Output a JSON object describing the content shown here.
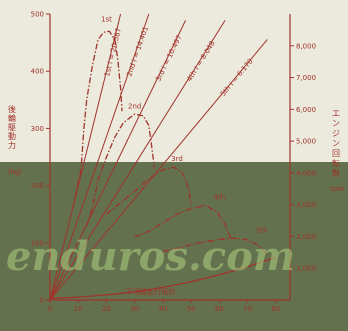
{
  "chart_data": {
    "type": "line",
    "y_left": {
      "label_chars": [
        "後",
        "輪",
        "駆",
        "動",
        "力"
      ],
      "unit": "(kg)",
      "ticks": [
        "500",
        "400",
        "300",
        "200",
        "100",
        "0"
      ],
      "range": [
        0,
        500
      ]
    },
    "y_right": {
      "label_chars": [
        "エ",
        "ン",
        "ジ",
        "ン",
        "回",
        "転",
        "数"
      ],
      "unit": "rpm",
      "ticks": [
        "8,000",
        "7,000",
        "6,000",
        "5,000",
        "4,000",
        "3,000",
        "2,000",
        "1,000"
      ],
      "range": [
        0,
        9000
      ]
    },
    "x": {
      "ticks": [
        "0",
        "10",
        "20",
        "30",
        "40",
        "50",
        "60",
        "70",
        "80"
      ],
      "range": [
        0,
        85
      ]
    },
    "rpm_lines": [
      {
        "label": "1st i = 20.387",
        "top_rpm": 9000,
        "top_speed": 25
      },
      {
        "label": "2nd i = 14.401",
        "top_rpm": 9000,
        "top_speed": 35
      },
      {
        "label": "3rd i = 10.497",
        "top_rpm": 8800,
        "top_speed": 48
      },
      {
        "label": "4th i = 8.048",
        "top_rpm": 8800,
        "top_speed": 62
      },
      {
        "label": "5th i = 6.170",
        "top_rpm": 8200,
        "top_speed": 77
      }
    ],
    "force_curves": [
      {
        "gear": "1st",
        "points": [
          [
            8,
            160
          ],
          [
            11,
            230
          ],
          [
            12,
            300
          ],
          [
            13,
            350
          ],
          [
            15,
            410
          ],
          [
            17,
            455
          ],
          [
            19,
            468
          ],
          [
            21,
            470
          ],
          [
            23,
            455
          ],
          [
            24,
            420
          ],
          [
            25,
            370
          ],
          [
            25.5,
            330
          ]
        ]
      },
      {
        "gear": "2nd",
        "points": [
          [
            13,
            130
          ],
          [
            15,
            160
          ],
          [
            17,
            210
          ],
          [
            20,
            250
          ],
          [
            23,
            285
          ],
          [
            26,
            310
          ],
          [
            30,
            325
          ],
          [
            33,
            322
          ],
          [
            35,
            305
          ],
          [
            36,
            270
          ],
          [
            37,
            230
          ]
        ]
      },
      {
        "gear": "3rd",
        "points": [
          [
            20,
            150
          ],
          [
            25,
            170
          ],
          [
            30,
            190
          ],
          [
            35,
            212
          ],
          [
            40,
            228
          ],
          [
            44,
            232
          ],
          [
            47,
            222
          ],
          [
            49,
            195
          ],
          [
            50,
            165
          ]
        ]
      },
      {
        "gear": "4th",
        "points": [
          [
            30,
            110
          ],
          [
            35,
            120
          ],
          [
            40,
            135
          ],
          [
            45,
            150
          ],
          [
            50,
            160
          ],
          [
            55,
            165
          ],
          [
            59,
            155
          ],
          [
            62,
            132
          ],
          [
            64,
            108
          ]
        ]
      },
      {
        "gear": "5th",
        "points": [
          [
            40,
            85
          ],
          [
            45,
            90
          ],
          [
            50,
            97
          ],
          [
            55,
            102
          ],
          [
            60,
            106
          ],
          [
            65,
            108
          ],
          [
            70,
            105
          ],
          [
            74,
            95
          ],
          [
            77,
            78
          ]
        ]
      }
    ],
    "gear_labels": [
      {
        "text": "1st",
        "x": 20,
        "y": 487
      },
      {
        "text": "2nd",
        "x": 30,
        "y": 335
      },
      {
        "text": "3rd",
        "x": 45,
        "y": 243
      },
      {
        "text": "4th",
        "x": 60,
        "y": 176
      },
      {
        "text": "5th",
        "x": 75,
        "y": 118
      }
    ],
    "road_load": {
      "label": "平坦路走行抵抗",
      "points": [
        [
          0,
          3
        ],
        [
          10,
          5
        ],
        [
          20,
          9
        ],
        [
          30,
          14
        ],
        [
          40,
          22
        ],
        [
          50,
          32
        ],
        [
          60,
          44
        ],
        [
          70,
          58
        ],
        [
          80,
          75
        ]
      ]
    },
    "colors": {
      "lines": "#a0332b",
      "axis": "#a0332b",
      "bottom_band": "#64714e",
      "watermark": "#a7c87a"
    }
  },
  "watermark": "enduros.com"
}
